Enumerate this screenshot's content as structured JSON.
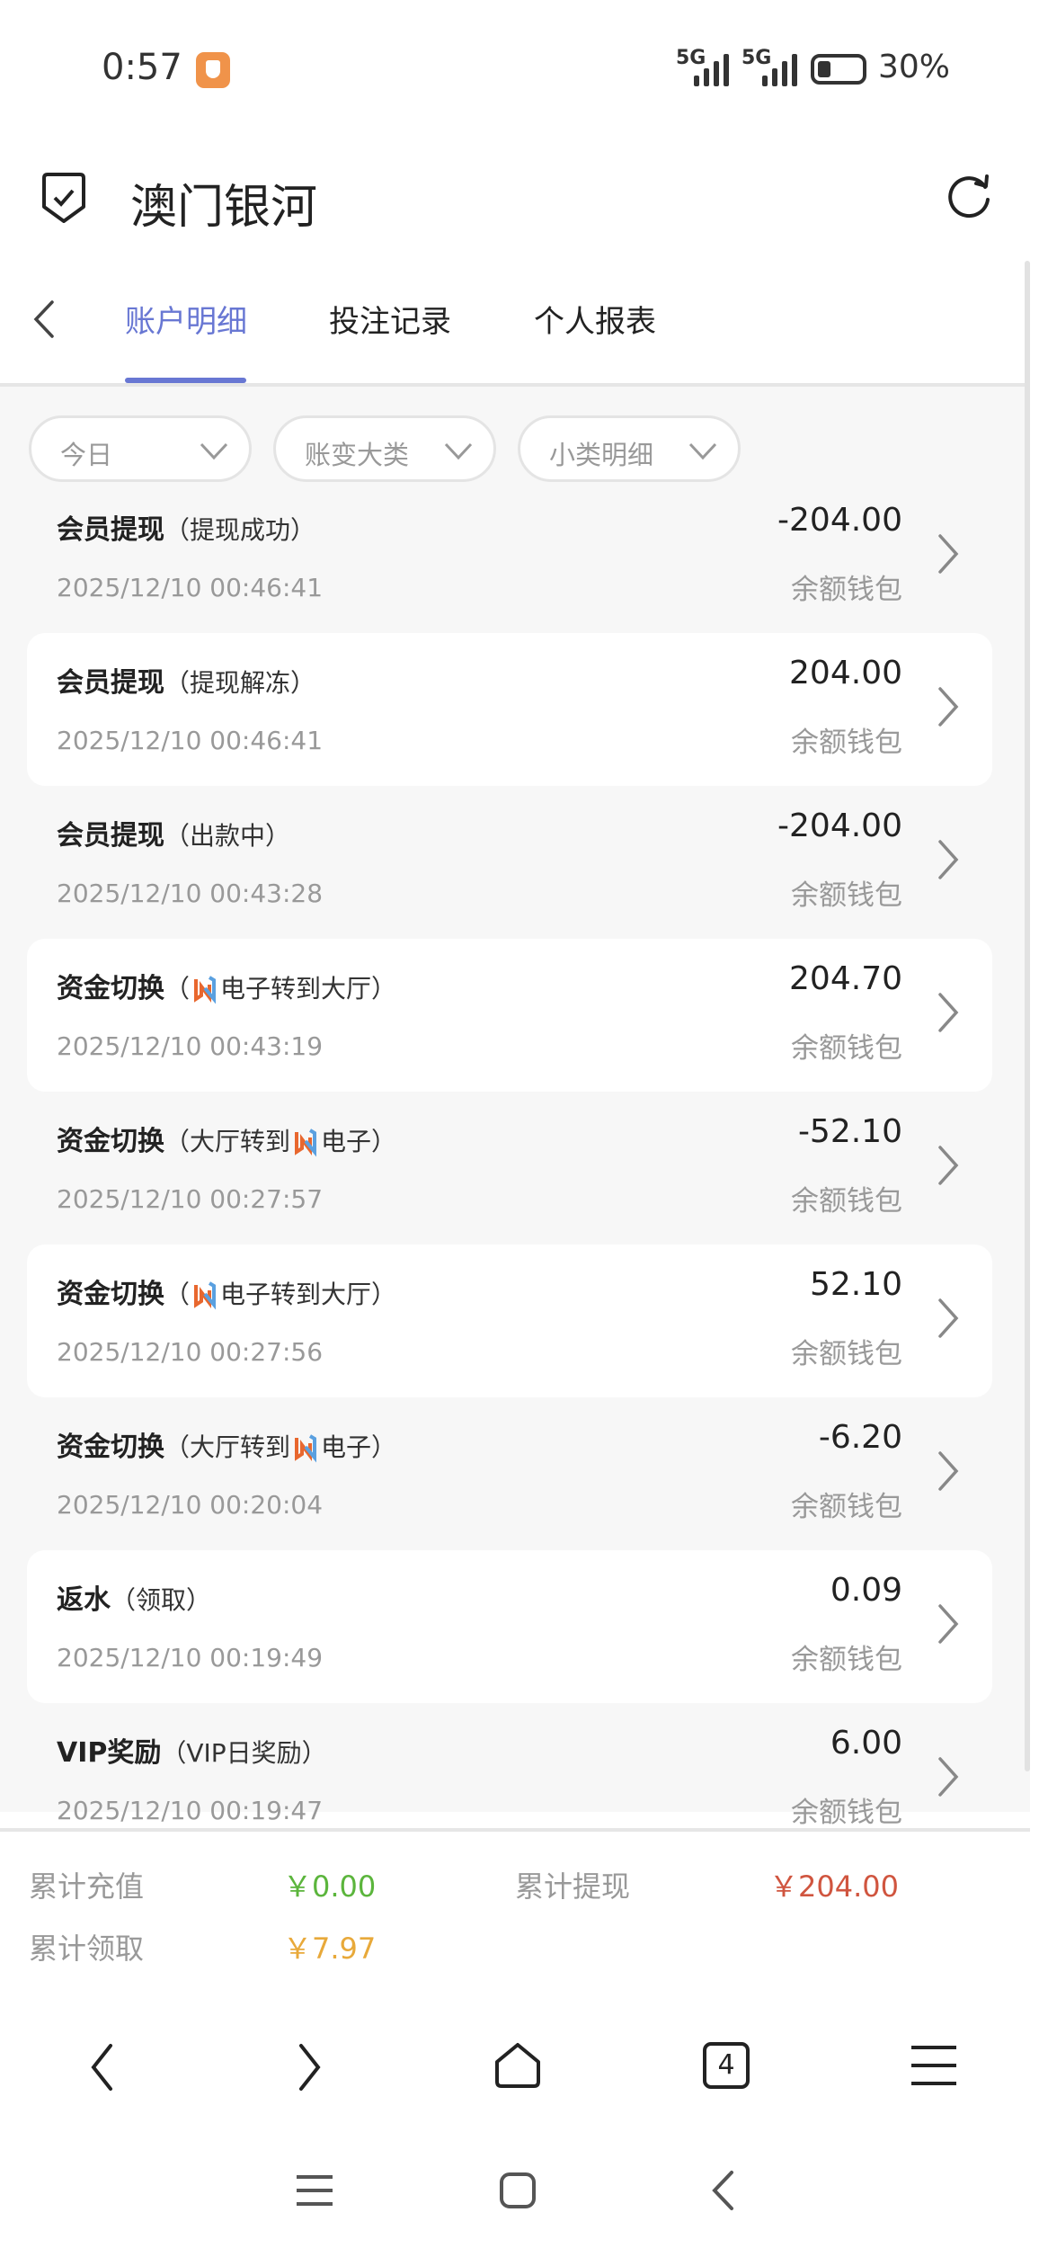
{
  "status_bar": {
    "time": "0:57",
    "network1": "5G",
    "network2": "5G",
    "battery": "30%",
    "battery_level": 0.3
  },
  "header": {
    "title": "澳门银河",
    "left_icon": "shield-check-icon",
    "right_icon": "refresh-icon"
  },
  "tabs": [
    {
      "label": "账户明细",
      "active": true
    },
    {
      "label": "投注记录",
      "active": false
    },
    {
      "label": "个人报表",
      "active": false
    }
  ],
  "filters": [
    {
      "label": "今日"
    },
    {
      "label": "账变大类"
    },
    {
      "label": "小类明细"
    }
  ],
  "records": [
    {
      "title": "会员提现",
      "pre": "（提现成功）",
      "logo": false,
      "post": "",
      "date": "2025/12/10 00:46:41",
      "amount": "-204.00",
      "wallet": "余额钱包"
    },
    {
      "title": "会员提现",
      "pre": "（提现解冻）",
      "logo": false,
      "post": "",
      "date": "2025/12/10 00:46:41",
      "amount": "204.00",
      "wallet": "余额钱包"
    },
    {
      "title": "会员提现",
      "pre": "（出款中）",
      "logo": false,
      "post": "",
      "date": "2025/12/10 00:43:28",
      "amount": "-204.00",
      "wallet": "余额钱包"
    },
    {
      "title": "资金切换",
      "pre": "（",
      "logo": true,
      "post": "电子转到大厅）",
      "date": "2025/12/10 00:43:19",
      "amount": "204.70",
      "wallet": "余额钱包"
    },
    {
      "title": "资金切换",
      "pre": "（大厅转到",
      "logo": true,
      "post": "电子）",
      "date": "2025/12/10 00:27:57",
      "amount": "-52.10",
      "wallet": "余额钱包"
    },
    {
      "title": "资金切换",
      "pre": "（",
      "logo": true,
      "post": "电子转到大厅）",
      "date": "2025/12/10 00:27:56",
      "amount": "52.10",
      "wallet": "余额钱包"
    },
    {
      "title": "资金切换",
      "pre": "（大厅转到",
      "logo": true,
      "post": "电子）",
      "date": "2025/12/10 00:20:04",
      "amount": "-6.20",
      "wallet": "余额钱包"
    },
    {
      "title": "返水",
      "pre": "（领取）",
      "logo": false,
      "post": "",
      "date": "2025/12/10 00:19:49",
      "amount": "0.09",
      "wallet": "余额钱包"
    },
    {
      "title": "VIP奖励",
      "pre": "（VIP日奖励）",
      "logo": false,
      "post": "",
      "date": "2025/12/10 00:19:47",
      "amount": "6.00",
      "wallet": "余额钱包"
    }
  ],
  "summary": {
    "recharge_label": "累计充值",
    "recharge_value": "￥0.00",
    "withdraw_label": "累计提现",
    "withdraw_value": "￥204.00",
    "claim_label": "累计领取",
    "claim_value": "￥7.97"
  },
  "browser_nav": {
    "tab_count": "4"
  },
  "colors": {
    "accent": "#6877d3",
    "green": "#5bb53c",
    "red": "#d0553f",
    "orange": "#e8a93a"
  }
}
